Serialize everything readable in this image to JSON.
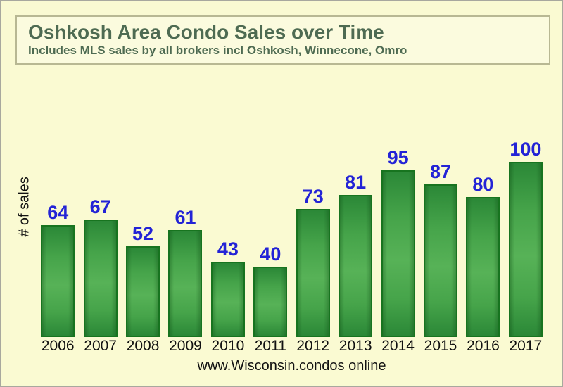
{
  "page": {
    "background_color": "#FAFAD2",
    "border_color": "#A8A89E"
  },
  "header": {
    "title": "Oshkosh Area Condo Sales over Time",
    "subtitle": "Includes MLS sales by all brokers incl Oshkosh, Winnecone, Omro",
    "text_color": "#4E6B52",
    "box_border_color": "#B8B893"
  },
  "chart_data": {
    "type": "bar",
    "title": "Oshkosh Area Condo Sales over Time",
    "subtitle": "Includes MLS sales by all brokers incl Oshkosh, Winnecone, Omro",
    "categories": [
      "2006",
      "2007",
      "2008",
      "2009",
      "2010",
      "2011",
      "2012",
      "2013",
      "2014",
      "2015",
      "2016",
      "2017"
    ],
    "values": [
      64,
      67,
      52,
      61,
      43,
      40,
      73,
      81,
      95,
      87,
      80,
      100
    ],
    "xlabel": "",
    "ylabel": "# of sales",
    "ylim": [
      0,
      100
    ],
    "grid": false,
    "legend": "none",
    "value_labels_shown": true,
    "value_label_color": "#2323D6",
    "axis_text_color": "#111111",
    "bar_border_color": "#17741F",
    "bar_color_dark": "#2B8837",
    "bar_color_mid": "#46A44A",
    "bar_color_light": "#57B257"
  },
  "footer": {
    "caption": "www.Wisconsin.condos online"
  }
}
